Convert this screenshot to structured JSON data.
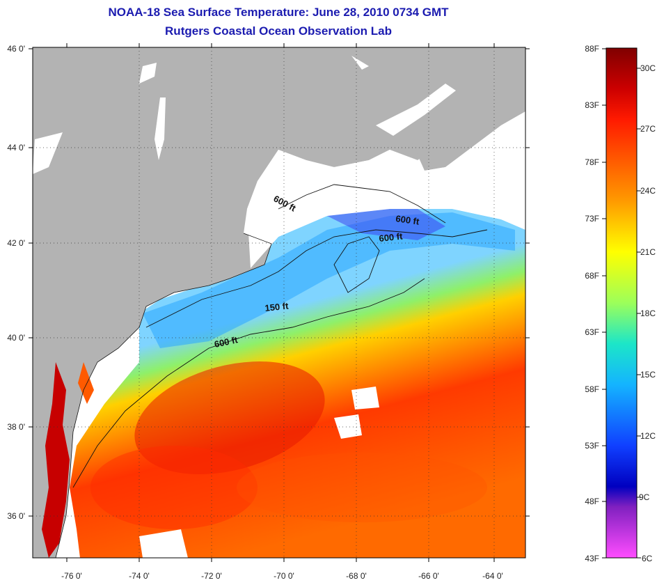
{
  "title": {
    "line1": "NOAA-18 Sea Surface Temperature:  June 28, 2010 0734 GMT",
    "line2": "Rutgers Coastal Ocean Observation Lab"
  },
  "axes": {
    "lat_ticks": [
      "46 0'",
      "44 0'",
      "42 0'",
      "40 0'",
      "38 0'",
      "36 0'"
    ],
    "lon_ticks": [
      "-76 0'",
      "-74 0'",
      "-72 0'",
      "-70 0'",
      "-68 0'",
      "-66 0'",
      "-64 0'"
    ]
  },
  "depth_labels": {
    "d1": "600 ft",
    "d2": "600 ft",
    "d3": "600 ft",
    "d4": "150 ft",
    "d5": "600 ft"
  },
  "colorbar": {
    "fahrenheit": [
      "88F",
      "83F",
      "78F",
      "73F",
      "68F",
      "63F",
      "58F",
      "53F",
      "48F",
      "43F"
    ],
    "celsius": [
      "30C",
      "27C",
      "24C",
      "21C",
      "18C",
      "15C",
      "12C",
      "9C",
      "6C"
    ]
  },
  "colors": {
    "title": "#1b1bb0",
    "land": "#b3b3b3",
    "warm": "#ff2a00",
    "cool": "#1478ff"
  }
}
